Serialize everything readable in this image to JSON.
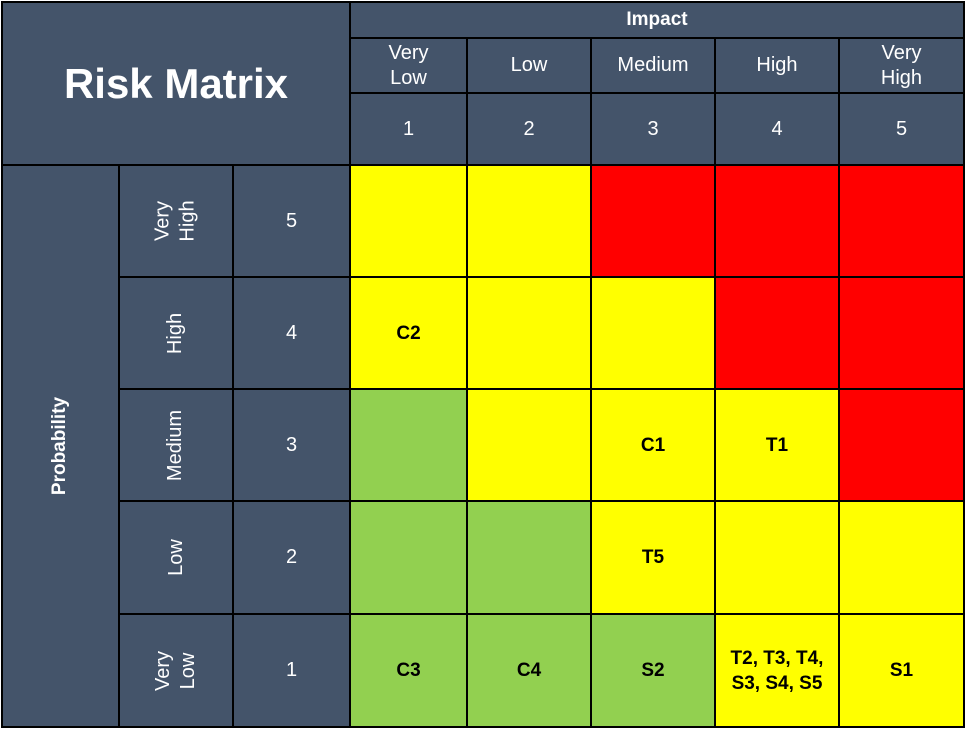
{
  "title": "Risk Matrix",
  "impact_label": "Impact",
  "probability_label": "Probability",
  "impact_levels": [
    {
      "name": "Very\nLow",
      "score": "1"
    },
    {
      "name": "Low",
      "score": "2"
    },
    {
      "name": "Medium",
      "score": "3"
    },
    {
      "name": "High",
      "score": "4"
    },
    {
      "name": "Very\nHigh",
      "score": "5"
    }
  ],
  "probability_levels": [
    {
      "name": "Very\nHigh",
      "score": "5"
    },
    {
      "name": "High",
      "score": "4"
    },
    {
      "name": "Medium",
      "score": "3"
    },
    {
      "name": "Low",
      "score": "2"
    },
    {
      "name": "Very\nLow",
      "score": "1"
    }
  ],
  "colors": {
    "header": "#44546a",
    "green": "#92d050",
    "yellow": "#ffff00",
    "red": "#ff0000"
  },
  "cells": [
    [
      {
        "color": "yellow",
        "text": ""
      },
      {
        "color": "yellow",
        "text": ""
      },
      {
        "color": "red",
        "text": ""
      },
      {
        "color": "red",
        "text": ""
      },
      {
        "color": "red",
        "text": ""
      }
    ],
    [
      {
        "color": "yellow",
        "text": "C2"
      },
      {
        "color": "yellow",
        "text": ""
      },
      {
        "color": "yellow",
        "text": ""
      },
      {
        "color": "red",
        "text": ""
      },
      {
        "color": "red",
        "text": ""
      }
    ],
    [
      {
        "color": "green",
        "text": ""
      },
      {
        "color": "yellow",
        "text": ""
      },
      {
        "color": "yellow",
        "text": "C1"
      },
      {
        "color": "yellow",
        "text": "T1"
      },
      {
        "color": "red",
        "text": ""
      }
    ],
    [
      {
        "color": "green",
        "text": ""
      },
      {
        "color": "green",
        "text": ""
      },
      {
        "color": "yellow",
        "text": "T5"
      },
      {
        "color": "yellow",
        "text": ""
      },
      {
        "color": "yellow",
        "text": ""
      }
    ],
    [
      {
        "color": "green",
        "text": "C3"
      },
      {
        "color": "green",
        "text": "C4"
      },
      {
        "color": "green",
        "text": "S2"
      },
      {
        "color": "yellow",
        "text": "T2, T3, T4,\nS3, S4, S5"
      },
      {
        "color": "yellow",
        "text": "S1"
      }
    ]
  ]
}
